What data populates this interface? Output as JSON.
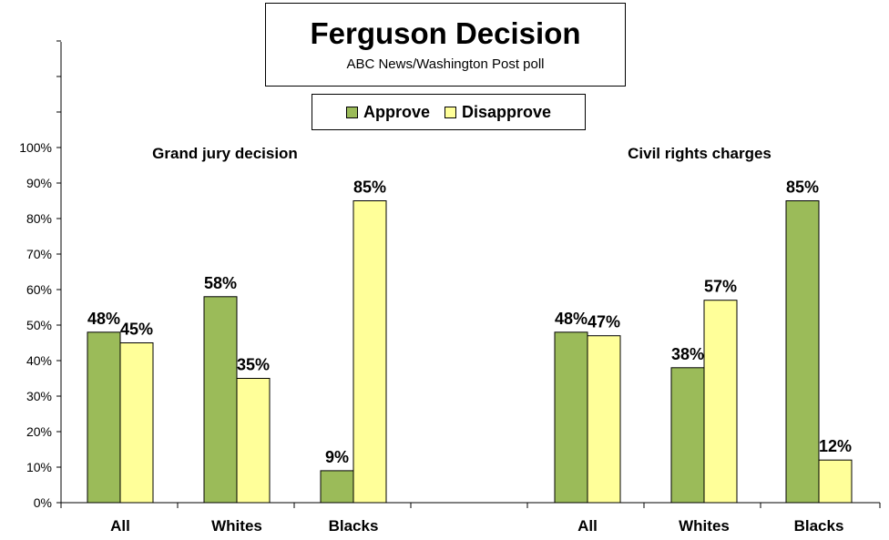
{
  "chart_data": {
    "type": "bar",
    "title": "Ferguson Decision",
    "subtitle": "ABC News/Washington  Post poll",
    "legend": [
      {
        "name": "Approve",
        "color": "#9BBB59"
      },
      {
        "name": "Disapprove",
        "color": "#FFFF99"
      }
    ],
    "y_ticks": [
      "0%",
      "10%",
      "20%",
      "30%",
      "40%",
      "50%",
      "60%",
      "70%",
      "80%",
      "90%",
      "100%"
    ],
    "ylim": [
      0,
      100
    ],
    "groups": [
      {
        "title": "Grand jury decision",
        "categories": [
          "All",
          "Whites",
          "Blacks"
        ],
        "series": [
          {
            "name": "Approve",
            "values": [
              48,
              58,
              9
            ],
            "labels": [
              "48%",
              "58%",
              "9%"
            ]
          },
          {
            "name": "Disapprove",
            "values": [
              45,
              35,
              85
            ],
            "labels": [
              "45%",
              "35%",
              "85%"
            ]
          }
        ]
      },
      {
        "title": "Civil rights charges",
        "categories": [
          "All",
          "Whites",
          "Blacks"
        ],
        "series": [
          {
            "name": "Approve",
            "values": [
              48,
              38,
              85
            ],
            "labels": [
              "48%",
              "38%",
              "85%"
            ]
          },
          {
            "name": "Disapprove",
            "values": [
              47,
              57,
              12
            ],
            "labels": [
              "47%",
              "57%",
              "12%"
            ]
          }
        ]
      }
    ]
  }
}
